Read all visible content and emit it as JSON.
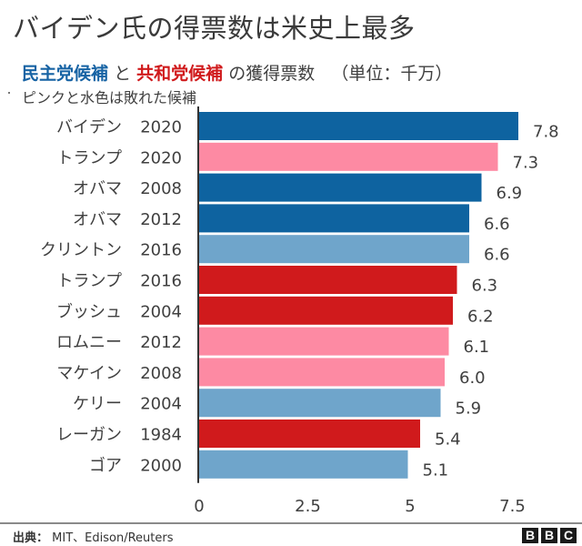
{
  "chart_data": {
    "type": "bar",
    "orientation": "horizontal",
    "title": "バイデン氏の得票数は米史上最多",
    "subtitle": {
      "dem_label": "民主党候補",
      "joiner": "と",
      "rep_label": "共和党候補",
      "rest": "の獲得票数",
      "unit": "（単位：千万）"
    },
    "note": "ピンクと水色は敗れた候補",
    "categories": [
      {
        "name": "バイデン",
        "year": "2020"
      },
      {
        "name": "トランプ",
        "year": "2020"
      },
      {
        "name": "オバマ",
        "year": "2008"
      },
      {
        "name": "オバマ",
        "year": "2012"
      },
      {
        "name": "クリントン",
        "year": "2016"
      },
      {
        "name": "トランプ",
        "year": "2016"
      },
      {
        "name": "ブッシュ",
        "year": "2004"
      },
      {
        "name": "ロムニー",
        "year": "2012"
      },
      {
        "name": "マケイン",
        "year": "2008"
      },
      {
        "name": "ケリー",
        "year": "2004"
      },
      {
        "name": "レーガン",
        "year": "1984"
      },
      {
        "name": "ゴア",
        "year": "2000"
      }
    ],
    "values": [
      7.8,
      7.3,
      6.9,
      6.6,
      6.6,
      6.3,
      6.2,
      6.1,
      6.0,
      5.9,
      5.4,
      5.1
    ],
    "value_labels": [
      "7.8",
      "7.3",
      "6.9",
      "6.6",
      "6.6",
      "6.3",
      "6.2",
      "6.1",
      "6.0",
      "5.9",
      "5.4",
      "5.1"
    ],
    "party": [
      "dem-win",
      "rep-lose",
      "dem-win",
      "dem-win",
      "dem-lose",
      "rep-win",
      "rep-win",
      "rep-lose",
      "rep-lose",
      "dem-lose",
      "rep-win",
      "dem-lose"
    ],
    "colors": {
      "dem-win": "#0e63a0",
      "dem-lose": "#6fa5cb",
      "rep-win": "#d01a1c",
      "rep-lose": "#fd8aa3"
    },
    "xlabel": "",
    "ylabel": "",
    "xlim": [
      0,
      8
    ],
    "xticks": [
      0,
      2.5,
      5,
      7.5
    ],
    "xtick_labels": [
      "0",
      "2.5",
      "5",
      "7.5"
    ],
    "grid": false,
    "legend": "none"
  },
  "footer": {
    "source_label": "出典：",
    "source_text": "MIT、Edison/Reuters",
    "logo_letters": [
      "B",
      "B",
      "C"
    ]
  }
}
